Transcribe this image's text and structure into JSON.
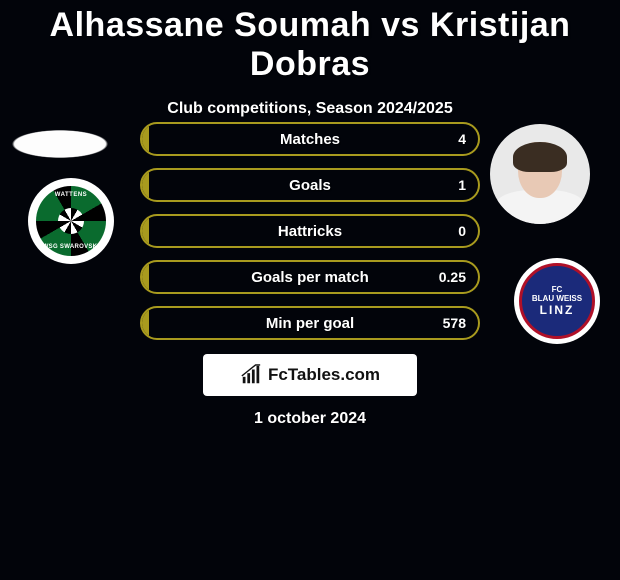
{
  "title": "Alhassane Soumah vs Kristijan Dobras",
  "subtitle": "Club competitions, Season 2024/2025",
  "date": "1 october 2024",
  "brand_text": "FcTables.com",
  "colors": {
    "background": "#02040a",
    "bar_border": "#a89a1e",
    "bar_fill": "#a89a1e",
    "text": "#ffffff",
    "brand_bg": "#ffffff",
    "brand_text": "#111111",
    "logo_left_ring": "#0a6b2e",
    "logo_right_bg": "#1b2a7a",
    "logo_right_ring": "#b01028"
  },
  "stats": [
    {
      "label": "Matches",
      "value_right": "4",
      "fill_left_pct": 2
    },
    {
      "label": "Goals",
      "value_right": "1",
      "fill_left_pct": 2
    },
    {
      "label": "Hattricks",
      "value_right": "0",
      "fill_left_pct": 2
    },
    {
      "label": "Goals per match",
      "value_right": "0.25",
      "fill_left_pct": 2
    },
    {
      "label": "Min per goal",
      "value_right": "578",
      "fill_left_pct": 2
    }
  ],
  "left_team_text_top": "WATTENS",
  "left_team_text_bottom": "WSG SWAROVSKI",
  "right_team_lines": [
    "FC",
    "BLAU WEISS",
    "LINZ"
  ]
}
